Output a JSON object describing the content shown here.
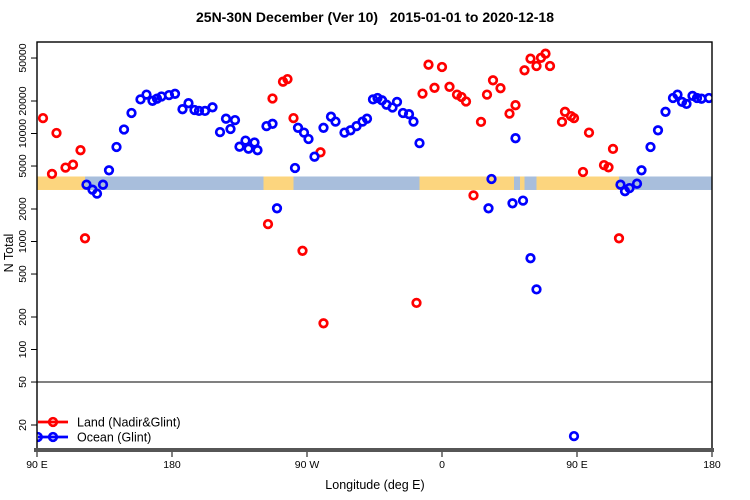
{
  "chart_data": {
    "type": "scatter",
    "title": "25N-30N December (Ver 10)   2015-01-01 to 2020-12-18",
    "xlabel": "Longitude (deg E)",
    "ylabel": "N Total",
    "x_axis": {
      "lim": [
        90,
        540
      ],
      "ticks": [
        {
          "value": 90,
          "label": "90 E"
        },
        {
          "value": 180,
          "label": "180"
        },
        {
          "value": 270,
          "label": "90 W"
        },
        {
          "value": 360,
          "label": "0"
        },
        {
          "value": 450,
          "label": "90 E"
        },
        {
          "value": 540,
          "label": "180"
        }
      ]
    },
    "y_axis": {
      "scale": "log",
      "lim": [
        14,
        70000
      ],
      "ticks": [
        20,
        50,
        100,
        200,
        500,
        1000,
        2000,
        5000,
        10000,
        20000,
        50000
      ]
    },
    "threshold_line": {
      "value": 50,
      "color": "#000000"
    },
    "coast_band": {
      "value_top": 4000,
      "value_bottom": 3000,
      "land_color": "#FCD57E",
      "ocean_color": "#A8BEDC",
      "segments": [
        {
          "surface": "land",
          "from": 90,
          "to": 122
        },
        {
          "surface": "ocean",
          "from": 122,
          "to": 241
        },
        {
          "surface": "land",
          "from": 241,
          "to": 261
        },
        {
          "surface": "ocean",
          "from": 261,
          "to": 345
        },
        {
          "surface": "land",
          "from": 345,
          "to": 408
        },
        {
          "surface": "ocean",
          "from": 408,
          "to": 412
        },
        {
          "surface": "land",
          "from": 412,
          "to": 415
        },
        {
          "surface": "ocean",
          "from": 415,
          "to": 423
        },
        {
          "surface": "land",
          "from": 423,
          "to": 478
        },
        {
          "surface": "ocean",
          "from": 478,
          "to": 540
        }
      ]
    },
    "series": [
      {
        "name": "Land (Nadir&Glint)",
        "color": "#FF0000",
        "points": [
          [
            94,
            13900
          ],
          [
            100,
            4230
          ],
          [
            103,
            10100
          ],
          [
            109,
            4830
          ],
          [
            114,
            5140
          ],
          [
            119,
            7000
          ],
          [
            122,
            1070
          ],
          [
            244,
            1450
          ],
          [
            247,
            21100
          ],
          [
            254,
            30200
          ],
          [
            257,
            31900
          ],
          [
            261,
            13900
          ],
          [
            267,
            820
          ],
          [
            279,
            6700
          ],
          [
            281,
            175
          ],
          [
            343,
            270
          ],
          [
            347,
            23400
          ],
          [
            351,
            43400
          ],
          [
            355,
            26500
          ],
          [
            360,
            41300
          ],
          [
            365,
            27100
          ],
          [
            370,
            22900
          ],
          [
            373,
            21800
          ],
          [
            376,
            19800
          ],
          [
            381,
            2670
          ],
          [
            386,
            12800
          ],
          [
            390,
            22900
          ],
          [
            394,
            31100
          ],
          [
            399,
            26300
          ],
          [
            405,
            15300
          ],
          [
            409,
            18300
          ],
          [
            415,
            38500
          ],
          [
            419,
            49300
          ],
          [
            423,
            42200
          ],
          [
            426,
            50200
          ],
          [
            429,
            54800
          ],
          [
            432,
            42200
          ],
          [
            440,
            12800
          ],
          [
            442,
            15900
          ],
          [
            446,
            14500
          ],
          [
            448,
            13900
          ],
          [
            454,
            4400
          ],
          [
            458,
            10200
          ],
          [
            468,
            5100
          ],
          [
            471,
            4870
          ],
          [
            474,
            7200
          ],
          [
            478,
            1070
          ]
        ]
      },
      {
        "name": "Ocean (Glint)",
        "color": "#0000FF",
        "points": [
          [
            90.5,
            15.5
          ],
          [
            123,
            3360
          ],
          [
            127,
            3020
          ],
          [
            130,
            2780
          ],
          [
            134,
            3360
          ],
          [
            138,
            4560
          ],
          [
            143,
            7500
          ],
          [
            148,
            10900
          ],
          [
            153,
            15500
          ],
          [
            159,
            20700
          ],
          [
            163,
            22900
          ],
          [
            167,
            20100
          ],
          [
            170,
            21000
          ],
          [
            173,
            22000
          ],
          [
            178,
            22700
          ],
          [
            182,
            23300
          ],
          [
            187,
            16800
          ],
          [
            191,
            19100
          ],
          [
            195,
            16500
          ],
          [
            198,
            16200
          ],
          [
            202,
            16200
          ],
          [
            207,
            17500
          ],
          [
            212,
            10300
          ],
          [
            216,
            13700
          ],
          [
            219,
            11000
          ],
          [
            222,
            13300
          ],
          [
            225,
            7550
          ],
          [
            229,
            8600
          ],
          [
            231,
            7230
          ],
          [
            235,
            8250
          ],
          [
            237,
            7000
          ],
          [
            243,
            11700
          ],
          [
            247,
            12300
          ],
          [
            250,
            2030
          ],
          [
            262,
            4790
          ],
          [
            264,
            11300
          ],
          [
            268,
            10200
          ],
          [
            271,
            8900
          ],
          [
            275,
            6100
          ],
          [
            281,
            11300
          ],
          [
            286,
            14300
          ],
          [
            289,
            12900
          ],
          [
            295,
            10200
          ],
          [
            299,
            10700
          ],
          [
            303,
            11700
          ],
          [
            307,
            12900
          ],
          [
            310,
            13700
          ],
          [
            314,
            20700
          ],
          [
            317,
            21300
          ],
          [
            320,
            20300
          ],
          [
            323,
            18500
          ],
          [
            327,
            17400
          ],
          [
            330,
            19600
          ],
          [
            334,
            15500
          ],
          [
            338,
            15100
          ],
          [
            341,
            12900
          ],
          [
            345,
            8150
          ],
          [
            391,
            2030
          ],
          [
            393,
            3790
          ],
          [
            407,
            2260
          ],
          [
            409,
            9050
          ],
          [
            414,
            2390
          ],
          [
            419,
            700
          ],
          [
            423,
            360
          ],
          [
            448,
            15.8
          ],
          [
            479,
            3360
          ],
          [
            482,
            2920
          ],
          [
            485,
            3120
          ],
          [
            490,
            3430
          ],
          [
            493,
            4560
          ],
          [
            499,
            7500
          ],
          [
            504,
            10700
          ],
          [
            509,
            15900
          ],
          [
            514,
            21300
          ],
          [
            517,
            22900
          ],
          [
            520,
            19600
          ],
          [
            523,
            18800
          ],
          [
            527,
            22300
          ],
          [
            530,
            21300
          ],
          [
            533,
            21000
          ],
          [
            538,
            21300
          ]
        ]
      }
    ],
    "legend": {
      "position": "bottom-left",
      "entries": [
        "Land (Nadir&Glint)",
        "Ocean (Glint)"
      ]
    }
  }
}
